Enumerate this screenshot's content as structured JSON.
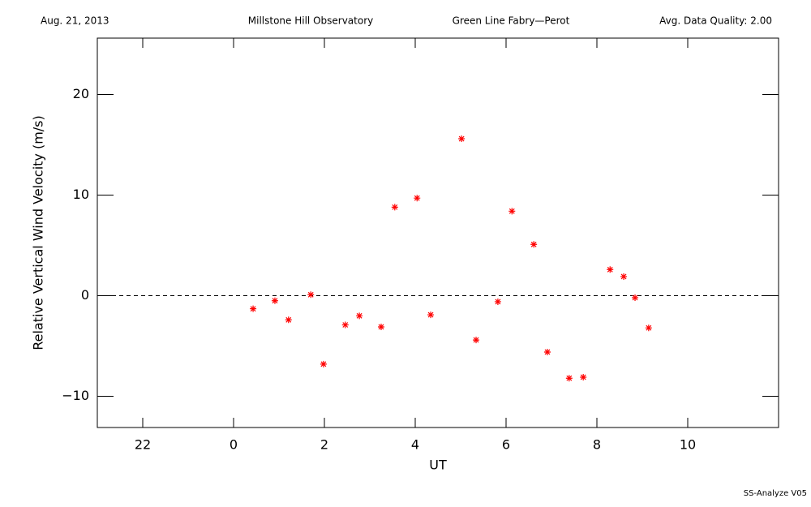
{
  "header": {
    "date": "Aug. 21, 2013",
    "observatory": "Millstone Hill Observatory",
    "instrument": "Green Line Fabry—Perot",
    "quality": "Avg. Data Quality: 2.00"
  },
  "footer": "SS-Analyze V05",
  "chart_data": {
    "type": "scatter",
    "xlabel": "UT",
    "ylabel": "Relative Vertical Wind Velocity (m/s)",
    "xlim": [
      -3,
      12
    ],
    "ylim": [
      -13.1,
      25.6
    ],
    "xticks": [
      {
        "value": -2,
        "label": "22"
      },
      0,
      2,
      4,
      6,
      8,
      10
    ],
    "yticks": [
      {
        "value": -10,
        "label": "−10"
      },
      0,
      10,
      20
    ],
    "zero_line": true,
    "color": "#ff0000",
    "x": [
      0.43,
      0.91,
      1.21,
      1.7,
      1.98,
      2.46,
      2.77,
      3.25,
      3.55,
      4.04,
      4.34,
      5.02,
      5.34,
      5.82,
      6.13,
      6.61,
      6.91,
      7.39,
      7.7,
      8.29,
      8.59,
      8.84,
      9.14
    ],
    "values": [
      -1.3,
      -0.5,
      -2.4,
      0.1,
      -6.8,
      -2.9,
      -2.0,
      -3.1,
      8.8,
      9.7,
      -1.9,
      15.6,
      -4.4,
      -0.6,
      8.4,
      5.1,
      -5.6,
      -8.2,
      -8.1,
      2.6,
      1.9,
      -0.2,
      -3.2
    ]
  }
}
